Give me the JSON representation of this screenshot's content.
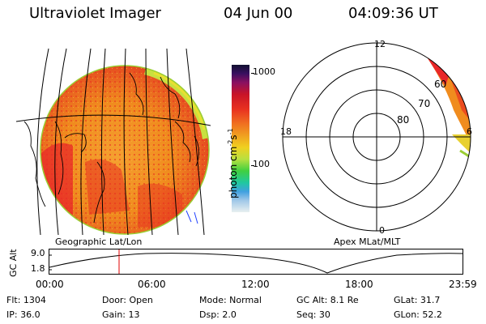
{
  "header": {
    "title": "Ultraviolet Imager",
    "date": "04 Jun 00",
    "time": "04:09:36 UT"
  },
  "colorbar": {
    "unit": "photon cm",
    "unit_exp": "-2",
    "unit_s": "s",
    "unit_s_exp": "-1",
    "ticks": [
      "1000",
      "100"
    ]
  },
  "polar_plot": {
    "mlt_labels": {
      "top": "12",
      "left": "18",
      "right": "6",
      "bottom": "0"
    },
    "lat_labels": [
      "60",
      "70",
      "80"
    ]
  },
  "panels": {
    "geographic_label": "Geographic Lat/Lon",
    "apex_label": "Apex MLat/MLT"
  },
  "orbit": {
    "ylabel": "GC Alt",
    "ymax_label": "9.0",
    "ymin_label": "1.8",
    "time_ticks": [
      "00:00",
      "06:00",
      "12:00",
      "18:00",
      "23:59"
    ]
  },
  "info": {
    "flt": "Flt: 1304",
    "ip": "IP: 36.0",
    "door": "Door: Open",
    "gain": "Gain: 13",
    "mode": "Mode: Normal",
    "dsp": "Dsp:     2.0",
    "gcalt": "GC Alt: 8.1 Re",
    "seq": "Seq: 30",
    "glat": "GLat:   31.7",
    "glon": "GLon:   52.2"
  },
  "colors": {
    "aurora_orange": "#f08c1e",
    "aurora_red": "#e82828",
    "limb_green": "#9acd32",
    "cursor_red": "#e00000"
  }
}
